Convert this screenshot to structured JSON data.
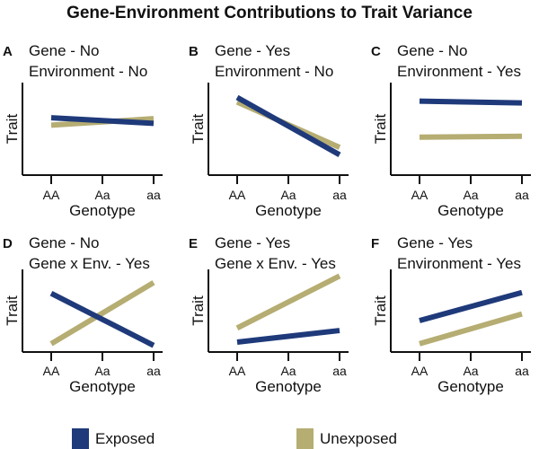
{
  "chart_data": {
    "title": "Gene-Environment Contributions to Trait Variance",
    "legend": {
      "placement": "bottom",
      "entries": [
        {
          "name": "Exposed",
          "color": "#1f3a7a"
        },
        {
          "name": "Unexposed",
          "color": "#b5ad72"
        }
      ]
    },
    "panels": [
      {
        "type": "line",
        "label": "A",
        "title": [
          "Gene - No",
          "Environment - No"
        ],
        "xlabel": "Genotype",
        "ylabel": "Trait",
        "categories": [
          "AA",
          "Aa",
          "aa"
        ],
        "ylim": [
          0,
          10
        ],
        "series": [
          {
            "name": "Exposed",
            "values": [
              6.2,
              5.9,
              5.6
            ]
          },
          {
            "name": "Unexposed",
            "values": [
              5.4,
              5.75,
              6.1
            ]
          }
        ]
      },
      {
        "type": "line",
        "label": "B",
        "title": [
          "Gene - Yes",
          "Environment - No"
        ],
        "xlabel": "Genotype",
        "ylabel": "Trait",
        "categories": [
          "AA",
          "Aa",
          "aa"
        ],
        "ylim": [
          0,
          10
        ],
        "series": [
          {
            "name": "Exposed",
            "values": [
              8.4,
              5.3,
              2.2
            ]
          },
          {
            "name": "Unexposed",
            "values": [
              7.9,
              5.45,
              3.0
            ]
          }
        ]
      },
      {
        "type": "line",
        "label": "C",
        "title": [
          "Gene - No",
          "Environment - Yes"
        ],
        "xlabel": "Genotype",
        "ylabel": "Trait",
        "categories": [
          "AA",
          "Aa",
          "aa"
        ],
        "ylim": [
          0,
          10
        ],
        "series": [
          {
            "name": "Exposed",
            "values": [
              8.0,
              7.9,
              7.8
            ]
          },
          {
            "name": "Unexposed",
            "values": [
              4.1,
              4.15,
              4.2
            ]
          }
        ]
      },
      {
        "type": "line",
        "label": "D",
        "title": [
          "Gene - No",
          "Gene x Env. - Yes"
        ],
        "xlabel": "Genotype",
        "ylabel": "Trait",
        "categories": [
          "AA",
          "Aa",
          "aa"
        ],
        "ylim": [
          0,
          10
        ],
        "series": [
          {
            "name": "Exposed",
            "values": [
              7.1,
              3.95,
              0.8
            ]
          },
          {
            "name": "Unexposed",
            "values": [
              1.0,
              4.7,
              8.4
            ]
          }
        ]
      },
      {
        "type": "line",
        "label": "E",
        "title": [
          "Gene - Yes",
          "Gene x Env. - Yes"
        ],
        "xlabel": "Genotype",
        "ylabel": "Trait",
        "categories": [
          "AA",
          "Aa",
          "aa"
        ],
        "ylim": [
          0,
          10
        ],
        "series": [
          {
            "name": "Exposed",
            "values": [
              1.2,
              1.9,
              2.6
            ]
          },
          {
            "name": "Unexposed",
            "values": [
              2.9,
              6.05,
              9.2
            ]
          }
        ]
      },
      {
        "type": "line",
        "label": "F",
        "title": [
          "Gene - Yes",
          "Environment - Yes"
        ],
        "xlabel": "Genotype",
        "ylabel": "Trait",
        "categories": [
          "AA",
          "Aa",
          "aa"
        ],
        "ylim": [
          0,
          10
        ],
        "series": [
          {
            "name": "Exposed",
            "values": [
              3.8,
              5.5,
              7.2
            ]
          },
          {
            "name": "Unexposed",
            "values": [
              1.0,
              2.8,
              4.6
            ]
          }
        ]
      }
    ]
  }
}
